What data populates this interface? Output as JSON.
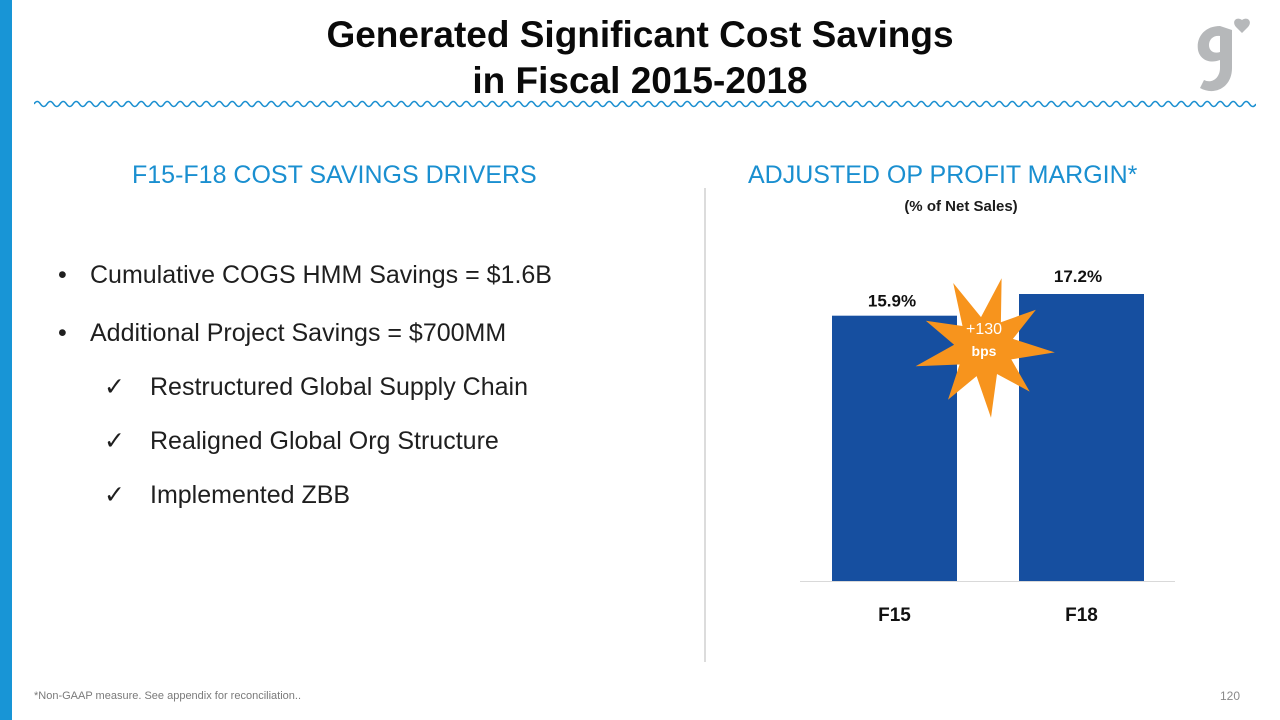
{
  "title": {
    "line1": "Generated Significant Cost Savings",
    "line2": "in Fiscal 2015-2018"
  },
  "left_section": {
    "heading": "F15-F18 COST SAVINGS DRIVERS",
    "bullets": [
      {
        "marker": "•",
        "text": "Cumulative COGS HMM Savings = $1.6B"
      },
      {
        "marker": "•",
        "text": "Additional Project Savings = $700MM"
      }
    ],
    "sub_items": [
      {
        "marker": "✓",
        "text": "Restructured Global Supply Chain"
      },
      {
        "marker": "✓",
        "text": "Realigned Global Org Structure"
      },
      {
        "marker": "✓",
        "text": "Implemented ZBB"
      }
    ]
  },
  "right_section": {
    "heading": "ADJUSTED OP PROFIT MARGIN*",
    "subtitle": "(% of Net Sales)"
  },
  "chart_data": {
    "type": "bar",
    "title": "ADJUSTED OP PROFIT MARGIN*",
    "subtitle": "(% of Net Sales)",
    "categories": [
      "F15",
      "F18"
    ],
    "values": [
      15.9,
      17.2
    ],
    "data_labels": [
      "15.9%",
      "17.2%"
    ],
    "ylim": [
      0,
      17.2
    ],
    "grid": false,
    "annotation": {
      "line1": "+130",
      "line2": "bps"
    }
  },
  "footnote": "*Non-GAAP measure. See appendix for reconciliation..",
  "page_number": "120",
  "colors": {
    "accent_blue": "#1a8fd0",
    "bar_blue": "#164fa0",
    "starburst_orange": "#f7941d",
    "left_bar": "#1895d6",
    "logo_gray": "#b6b8ba"
  },
  "logo": {
    "icon": "general-mills-g-heart-icon"
  }
}
